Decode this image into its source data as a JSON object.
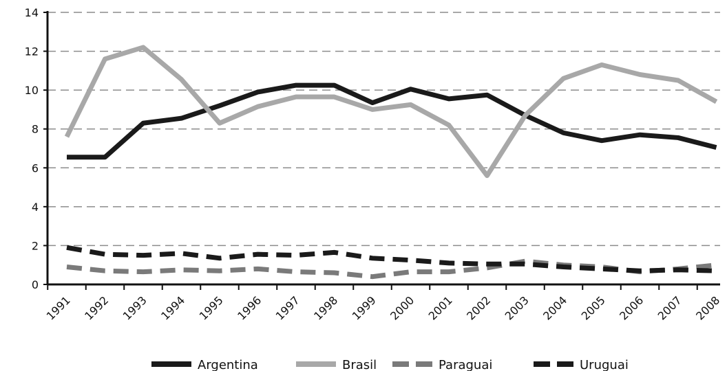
{
  "chart_data": {
    "type": "line",
    "title": "",
    "xlabel": "",
    "ylabel": "",
    "ylim": [
      0,
      14
    ],
    "yticks": [
      0,
      2,
      4,
      6,
      8,
      10,
      12,
      14
    ],
    "grid": "horizontal dashed",
    "legend_position": "bottom",
    "categories": [
      "1991",
      "1992",
      "1993",
      "1994",
      "1995",
      "1996",
      "1997",
      "1998",
      "1999",
      "2000",
      "2001",
      "2002",
      "2003",
      "2004",
      "2005",
      "2006",
      "2007",
      "2008"
    ],
    "series": [
      {
        "name": "Argentina",
        "color": "#1a1a1a",
        "dash": "solid",
        "values": [
          6.55,
          6.55,
          8.3,
          8.55,
          9.2,
          9.9,
          10.25,
          10.25,
          9.35,
          10.05,
          9.55,
          9.75,
          8.7,
          7.8,
          7.4,
          7.7,
          7.55,
          7.05
        ]
      },
      {
        "name": "Brasil",
        "color": "#a8a8a8",
        "dash": "solid",
        "values": [
          7.6,
          11.6,
          12.2,
          10.55,
          8.3,
          9.15,
          9.65,
          9.65,
          9.0,
          9.25,
          8.2,
          5.6,
          8.7,
          10.6,
          11.3,
          10.8,
          10.5,
          9.4
        ]
      },
      {
        "name": "Paraguai",
        "color": "#7a7a7a",
        "dash": "dashed",
        "values": [
          0.9,
          0.7,
          0.65,
          0.75,
          0.7,
          0.8,
          0.65,
          0.6,
          0.4,
          0.65,
          0.65,
          0.85,
          1.2,
          1.0,
          0.9,
          0.65,
          0.8,
          1.0
        ]
      },
      {
        "name": "Uruguai",
        "color": "#1a1a1a",
        "dash": "dashed",
        "values": [
          1.9,
          1.55,
          1.5,
          1.6,
          1.35,
          1.55,
          1.5,
          1.65,
          1.35,
          1.25,
          1.1,
          1.05,
          1.05,
          0.9,
          0.8,
          0.7,
          0.75,
          0.7
        ]
      }
    ]
  }
}
